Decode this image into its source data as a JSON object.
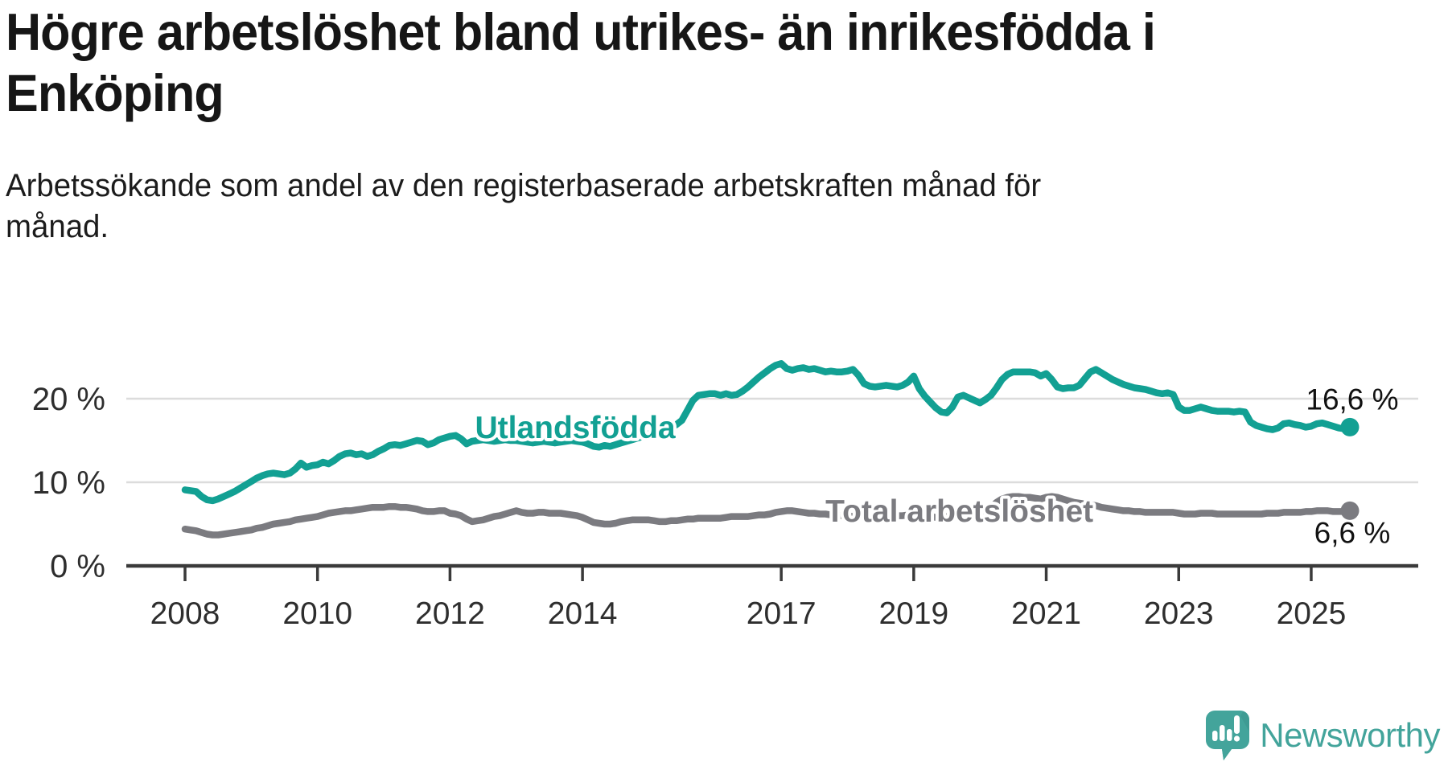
{
  "header": {
    "title_line1": "Högre arbetslöshet bland utrikes- än inrikesfödda i",
    "title_line2": "Enköping",
    "subtitle_line1": "Arbetssökande som andel av den registerbaserade arbetskraften månad för",
    "subtitle_line2": "månad."
  },
  "branding": {
    "logo_text": "Newsworthy",
    "logo_color": "#43a49b",
    "logo_icon": "bar-chart-speech-bubble"
  },
  "chart_data": {
    "type": "line",
    "title": "Högre arbetslöshet bland utrikes- än inrikesfödda i Enköping",
    "subtitle": "Arbetssökande som andel av den registerbaserade arbetskraften månad för månad.",
    "xlabel": "",
    "ylabel": "",
    "grid": "horizontal",
    "legend_position": "inline-labels",
    "x_start_year": 2008,
    "x_months_per_point": 1,
    "x_ticks": [
      2008,
      2010,
      2012,
      2014,
      2017,
      2019,
      2021,
      2023,
      2025
    ],
    "y_ticks": [
      {
        "value": 0,
        "label": "0 %"
      },
      {
        "value": 10,
        "label": "10 %"
      },
      {
        "value": 20,
        "label": "20 %"
      }
    ],
    "ylim": [
      0,
      26
    ],
    "colors": {
      "axis": "#3a3a3a",
      "grid": "#dcdcdc",
      "tick_label": "#2e2e2e",
      "value_label": "#111111"
    },
    "series": [
      {
        "name": "Utlandsfödda",
        "color": "#12a093",
        "end_label": "16,6 %",
        "end_label_side": "above",
        "label_anchor": {
          "year": 2013.89,
          "value": 16.55
        },
        "values": [
          9.1,
          9.0,
          8.9,
          8.3,
          7.9,
          7.8,
          8.0,
          8.3,
          8.6,
          8.9,
          9.3,
          9.7,
          10.1,
          10.5,
          10.8,
          11.0,
          11.1,
          11.0,
          10.9,
          11.1,
          11.6,
          12.3,
          11.8,
          12.0,
          12.1,
          12.4,
          12.2,
          12.6,
          13.1,
          13.4,
          13.5,
          13.3,
          13.4,
          13.1,
          13.3,
          13.7,
          14.0,
          14.4,
          14.5,
          14.4,
          14.6,
          14.8,
          15.0,
          14.9,
          14.5,
          14.7,
          15.1,
          15.3,
          15.5,
          15.6,
          15.2,
          14.6,
          14.9,
          15.0,
          15.1,
          15.0,
          14.9,
          15.0,
          15.1,
          15.0,
          15.0,
          14.9,
          14.8,
          14.7,
          14.8,
          14.9,
          14.8,
          14.7,
          14.8,
          14.9,
          15.0,
          14.9,
          14.8,
          14.6,
          14.3,
          14.2,
          14.4,
          14.3,
          14.5,
          14.7,
          14.9,
          15.1,
          15.3,
          15.5,
          15.8,
          15.9,
          16.0,
          16.2,
          16.5,
          16.9,
          17.4,
          18.6,
          19.8,
          20.4,
          20.5,
          20.6,
          20.6,
          20.4,
          20.6,
          20.4,
          20.5,
          20.9,
          21.4,
          22.0,
          22.6,
          23.1,
          23.6,
          24.0,
          24.2,
          23.6,
          23.4,
          23.6,
          23.7,
          23.5,
          23.6,
          23.4,
          23.2,
          23.3,
          23.2,
          23.2,
          23.3,
          23.5,
          22.8,
          21.8,
          21.5,
          21.4,
          21.5,
          21.6,
          21.5,
          21.4,
          21.6,
          22.0,
          22.7,
          21.2,
          20.3,
          19.6,
          18.9,
          18.4,
          18.3,
          19.0,
          20.2,
          20.4,
          20.1,
          19.8,
          19.5,
          19.9,
          20.4,
          21.3,
          22.3,
          22.9,
          23.2,
          23.2,
          23.2,
          23.2,
          23.1,
          22.7,
          23.0,
          22.3,
          21.4,
          21.2,
          21.3,
          21.3,
          21.6,
          22.4,
          23.2,
          23.5,
          23.1,
          22.7,
          22.3,
          22.0,
          21.7,
          21.5,
          21.3,
          21.2,
          21.1,
          20.9,
          20.7,
          20.6,
          20.7,
          20.5,
          19.0,
          18.6,
          18.6,
          18.8,
          19.0,
          18.8,
          18.6,
          18.5,
          18.5,
          18.5,
          18.4,
          18.5,
          18.4,
          17.2,
          16.8,
          16.6,
          16.4,
          16.3,
          16.5,
          17.0,
          17.1,
          16.9,
          16.8,
          16.6,
          16.7,
          17.0,
          17.1,
          16.9,
          16.7,
          16.5,
          16.4,
          16.6
        ]
      },
      {
        "name": "Total arbetslöshet",
        "color": "#7b7b80",
        "end_label": "6,6 %",
        "end_label_side": "below",
        "label_anchor": {
          "year": 2019.69,
          "value": 6.55
        },
        "values": [
          4.4,
          4.3,
          4.2,
          4.0,
          3.8,
          3.7,
          3.7,
          3.8,
          3.9,
          4.0,
          4.1,
          4.2,
          4.3,
          4.5,
          4.6,
          4.8,
          5.0,
          5.1,
          5.2,
          5.3,
          5.5,
          5.6,
          5.7,
          5.8,
          5.9,
          6.1,
          6.3,
          6.4,
          6.5,
          6.6,
          6.6,
          6.7,
          6.8,
          6.9,
          7.0,
          7.0,
          7.0,
          7.1,
          7.1,
          7.0,
          7.0,
          6.9,
          6.8,
          6.6,
          6.5,
          6.5,
          6.6,
          6.6,
          6.3,
          6.2,
          6.0,
          5.6,
          5.3,
          5.4,
          5.5,
          5.7,
          5.9,
          6.0,
          6.2,
          6.4,
          6.6,
          6.4,
          6.3,
          6.3,
          6.4,
          6.4,
          6.3,
          6.3,
          6.3,
          6.2,
          6.1,
          6.0,
          5.8,
          5.5,
          5.2,
          5.1,
          5.0,
          5.0,
          5.1,
          5.3,
          5.4,
          5.5,
          5.5,
          5.5,
          5.5,
          5.4,
          5.3,
          5.3,
          5.4,
          5.4,
          5.5,
          5.6,
          5.6,
          5.7,
          5.7,
          5.7,
          5.7,
          5.7,
          5.8,
          5.9,
          5.9,
          5.9,
          5.9,
          6.0,
          6.1,
          6.1,
          6.2,
          6.4,
          6.5,
          6.6,
          6.6,
          6.5,
          6.4,
          6.3,
          6.3,
          6.2,
          6.2,
          6.1,
          6.1,
          6.0,
          6.0,
          5.9,
          5.9,
          5.8,
          5.8,
          5.8,
          5.8,
          5.9,
          5.9,
          6.0,
          6.0,
          6.1,
          6.1,
          6.0,
          5.9,
          5.9,
          5.8,
          5.8,
          5.9,
          6.0,
          6.2,
          6.3,
          6.3,
          6.4,
          6.5,
          6.7,
          7.0,
          7.6,
          8.0,
          8.2,
          8.3,
          8.3,
          8.2,
          8.2,
          8.1,
          8.0,
          8.2,
          8.3,
          8.2,
          8.0,
          7.8,
          7.6,
          7.5,
          7.4,
          7.3,
          7.2,
          7.0,
          6.9,
          6.8,
          6.7,
          6.6,
          6.6,
          6.5,
          6.5,
          6.4,
          6.4,
          6.4,
          6.4,
          6.4,
          6.4,
          6.3,
          6.2,
          6.2,
          6.2,
          6.3,
          6.3,
          6.3,
          6.2,
          6.2,
          6.2,
          6.2,
          6.2,
          6.2,
          6.2,
          6.2,
          6.2,
          6.3,
          6.3,
          6.3,
          6.4,
          6.4,
          6.4,
          6.4,
          6.5,
          6.5,
          6.6,
          6.6,
          6.6,
          6.5,
          6.5,
          6.5,
          6.6
        ]
      }
    ]
  }
}
